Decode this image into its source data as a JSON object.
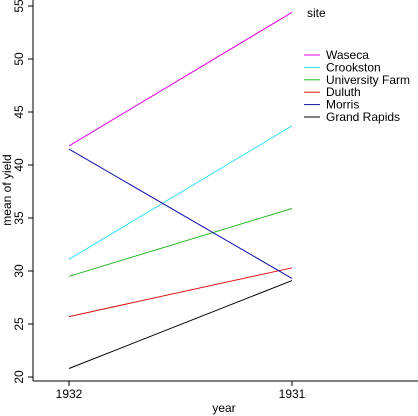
{
  "chart_data": {
    "type": "line",
    "x_categories": [
      "1932",
      "1931"
    ],
    "xlabel": "year",
    "ylabel": "mean of  yield",
    "ylim": [
      20,
      55
    ],
    "yticks": [
      20,
      25,
      30,
      35,
      40,
      45,
      50,
      55
    ],
    "grid": false,
    "legend": {
      "title": "site",
      "placement": "top-right",
      "entries": [
        "Waseca",
        "Crookston",
        "University Farm",
        "Duluth",
        "Morris",
        "Grand Rapids"
      ]
    },
    "series": [
      {
        "name": "Waseca",
        "color": "#e600e6",
        "values": [
          41.8,
          54.4
        ]
      },
      {
        "name": "Crookston",
        "color": "#33ddee",
        "values": [
          31.1,
          43.7
        ]
      },
      {
        "name": "University Farm",
        "color": "#22bb22",
        "values": [
          29.5,
          35.9
        ]
      },
      {
        "name": "Duluth",
        "color": "#dd1111",
        "values": [
          25.7,
          30.3
        ]
      },
      {
        "name": "Morris",
        "color": "#1111aa",
        "values": [
          41.5,
          29.3
        ]
      },
      {
        "name": "Grand Rapids",
        "color": "#000000",
        "values": [
          20.8,
          29.1
        ]
      }
    ]
  }
}
